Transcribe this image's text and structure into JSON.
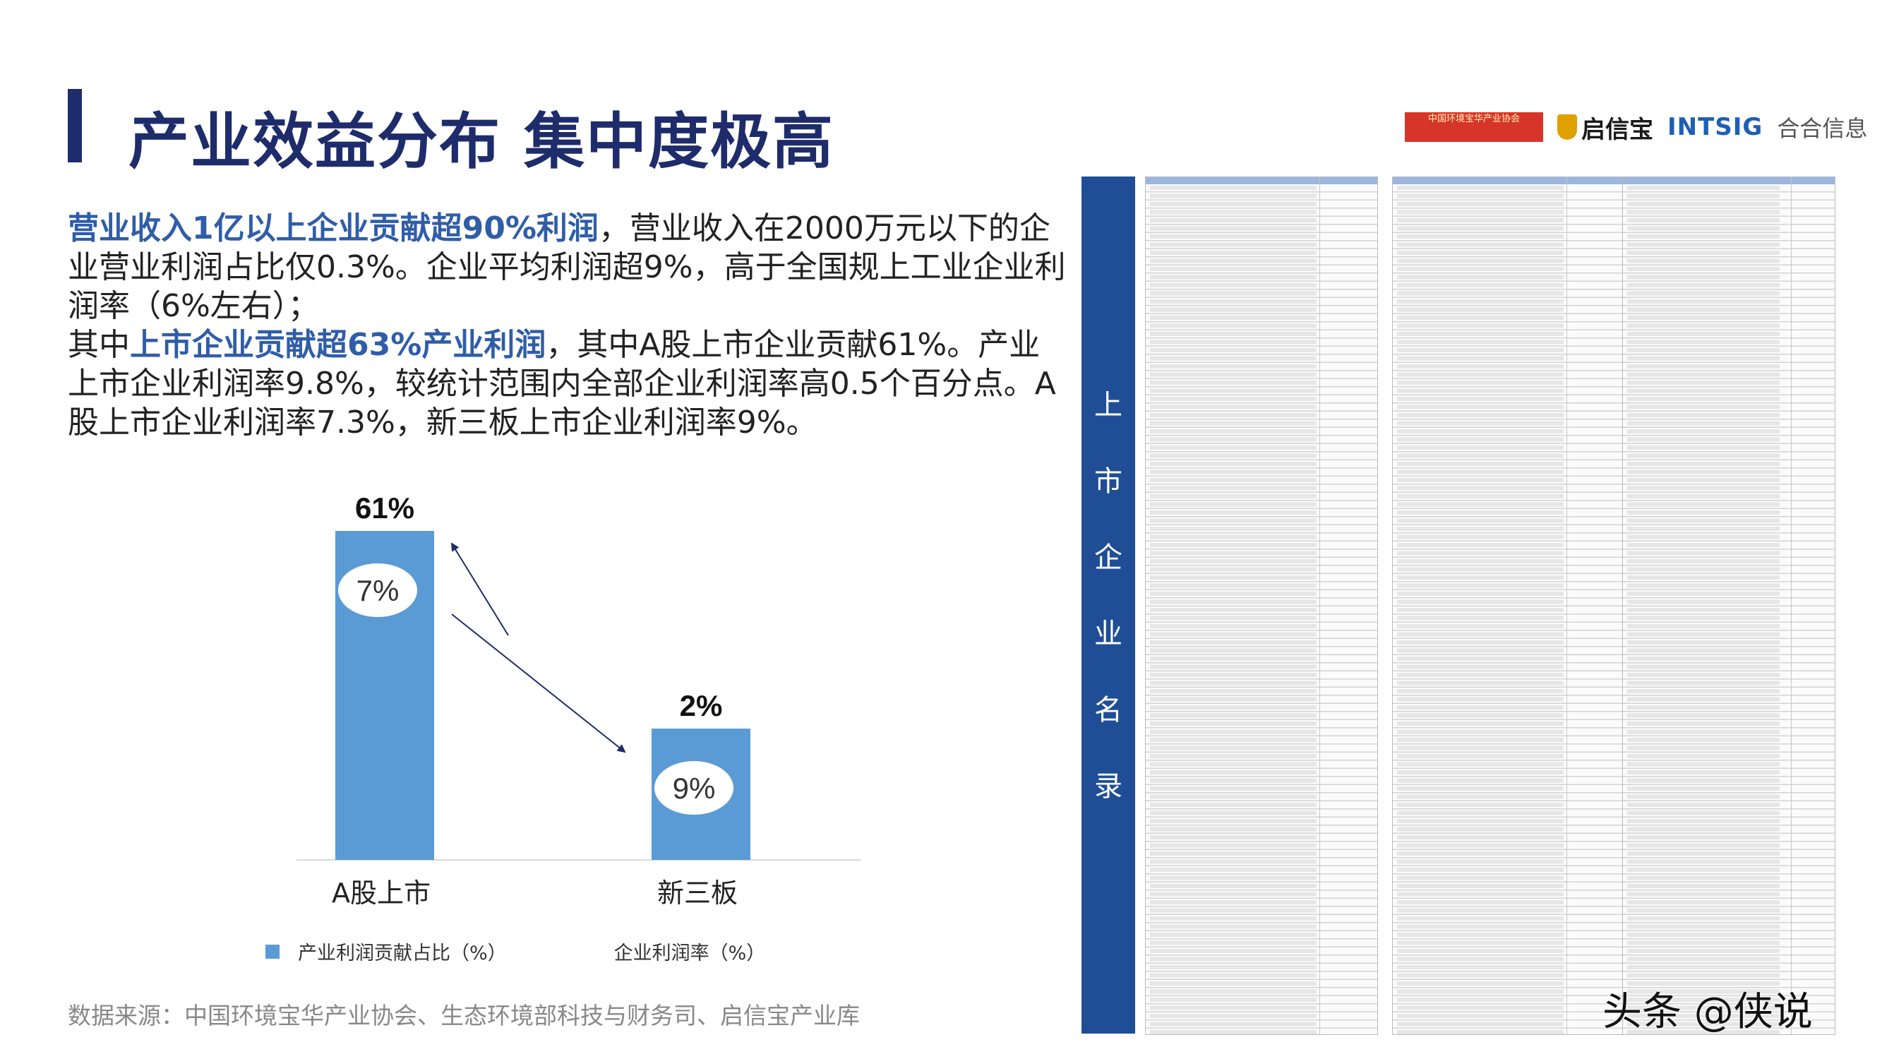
{
  "header": {
    "title": "产业效益分布  集中度极高",
    "logos": {
      "association": "中国环境宝华产业协会",
      "qixinbao": "启信宝",
      "intsig": "INTSIG",
      "hehe": "合合信息"
    }
  },
  "paragraph": {
    "l1_highlight": "营业收入1亿以上企业贡献超90%利润",
    "l1_rest": "，营业收入在2000万元以下的企业营业利润占比仅0.3%。企业平均利润超9%，高于全国规上工业企业利润率（6%左右）；",
    "l2_prefix": "其中",
    "l2_highlight": "上市企业贡献超63%产业利润",
    "l2_rest": "，其中A股上市企业贡献61%。产业上市企业利润率9.8%，较统计范围内全部企业利润率高0.5个百分点。A股上市企业利润率7.3%，新三板上市企业利润率9%。"
  },
  "chart_data": {
    "type": "bar",
    "categories": [
      "A股上市",
      "新三板"
    ],
    "series": [
      {
        "name": "产业利润贡献占比（%）",
        "values": [
          61,
          2
        ],
        "labels": [
          "61%",
          "2%"
        ]
      },
      {
        "name": "企业利润率（%）",
        "values": [
          7,
          9
        ],
        "labels": [
          "7%",
          "9%"
        ]
      }
    ],
    "colors": {
      "bar": "#5b9bd5",
      "bubble": "#ffffff",
      "arrow": "#1e2c6b",
      "axis": "#d9d9d9"
    },
    "legend_position": "bottom"
  },
  "source": "数据来源：中国环境宝华产业协会、生态环境部科技与财务司、启信宝产业库",
  "list_panel": {
    "label": [
      "上",
      "市",
      "企",
      "业",
      "名",
      "录"
    ]
  },
  "watermark": "头条 @侠说"
}
